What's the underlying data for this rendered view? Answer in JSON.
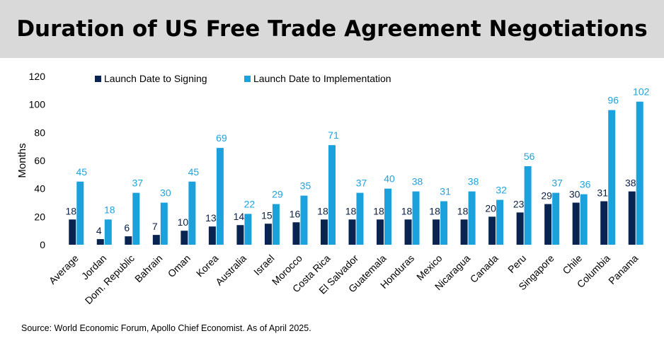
{
  "title": "Duration of US Free Trade Agreement Negotiations",
  "source": "Source: World Economic Forum, Apollo Chief Economist. As of April 2025.",
  "colors": {
    "signing": "#0a2451",
    "implementation": "#1ba1dc"
  },
  "chart_data": {
    "type": "bar",
    "title": "Duration of US Free Trade Agreement Negotiations",
    "xlabel": "",
    "ylabel": "Months",
    "ylim": [
      0,
      120
    ],
    "yticks": [
      0,
      20,
      40,
      60,
      80,
      100,
      120
    ],
    "grid": false,
    "legend_position": "top-left",
    "categories": [
      "Average",
      "Jordan",
      "Dom. Republic",
      "Bahrain",
      "Oman",
      "Korea",
      "Australia",
      "Israel",
      "Morocco",
      "Costa Rica",
      "El Salvador",
      "Guatemala",
      "Honduras",
      "Mexico",
      "Nicaragua",
      "Canada",
      "Peru",
      "Singapore",
      "Chile",
      "Columbia",
      "Panama"
    ],
    "series": [
      {
        "name": "Launch Date to Signing",
        "values": [
          18,
          4,
          6,
          7,
          10,
          13,
          14,
          15,
          16,
          18,
          18,
          18,
          18,
          18,
          18,
          20,
          23,
          29,
          30,
          31,
          38
        ]
      },
      {
        "name": "Launch Date to Implementation",
        "values": [
          45,
          18,
          37,
          30,
          45,
          69,
          22,
          29,
          35,
          71,
          37,
          40,
          38,
          31,
          38,
          32,
          56,
          37,
          36,
          96,
          102
        ]
      }
    ]
  }
}
